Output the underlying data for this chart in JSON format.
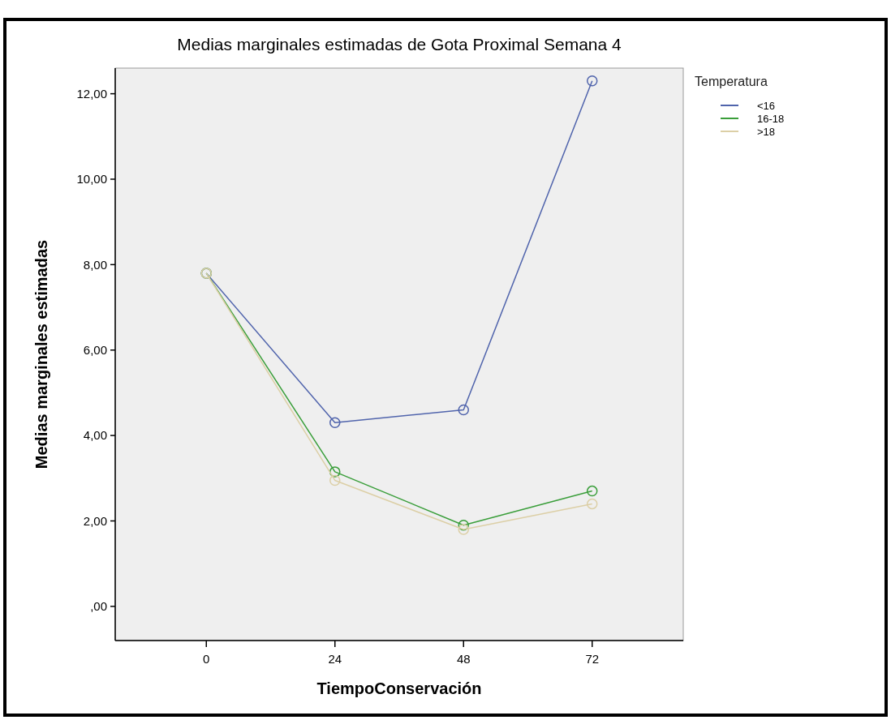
{
  "chart_data": {
    "type": "line",
    "title": "Medias marginales estimadas de Gota Proximal Semana 4",
    "xlabel": "TiempoConservación",
    "ylabel": "Medias marginales estimadas",
    "legend_title": "Temperatura",
    "x": [
      0,
      24,
      48,
      72
    ],
    "series": [
      {
        "name": "<16",
        "color": "#5064ac",
        "values": [
          7.8,
          4.3,
          4.6,
          12.3
        ]
      },
      {
        "name": "16-18",
        "color": "#3a9e3a",
        "values": [
          7.8,
          3.15,
          1.9,
          2.7
        ]
      },
      {
        "name": ">18",
        "color": "#dccfa6",
        "values": [
          7.8,
          2.95,
          1.8,
          2.4
        ]
      }
    ],
    "xlim": [
      -17,
      89
    ],
    "xticks": [
      0,
      24,
      48,
      72
    ],
    "ylim": [
      -0.8,
      12.6
    ],
    "yticks": [
      {
        "value": 0,
        "label": ",00"
      },
      {
        "value": 2,
        "label": "2,00"
      },
      {
        "value": 4,
        "label": "4,00"
      },
      {
        "value": 6,
        "label": "6,00"
      },
      {
        "value": 8,
        "label": "8,00"
      },
      {
        "value": 10,
        "label": "10,00"
      },
      {
        "value": 12,
        "label": "12,00"
      }
    ],
    "grid": false,
    "legend": "top right",
    "marker": "circle",
    "line_style": "solid"
  }
}
